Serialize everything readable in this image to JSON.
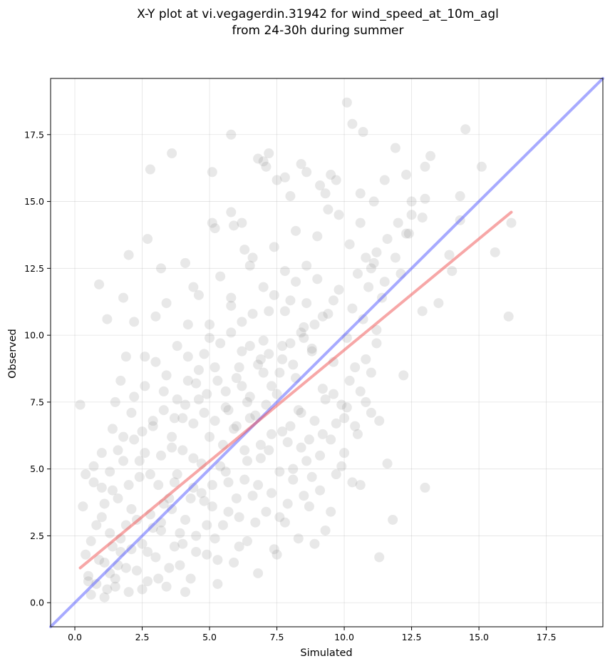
{
  "chart_data": {
    "type": "scatter",
    "title": "X-Y plot at vi.vegagerdin.31942 for wind_speed_at_10m_agl",
    "subtitle": "from 24-30h during summer",
    "xlabel": "Simulated",
    "ylabel": "Observed",
    "xlim": [
      -0.9,
      19.6
    ],
    "ylim": [
      -0.9,
      19.6
    ],
    "x_ticks": [
      "0.0",
      "2.5",
      "5.0",
      "7.5",
      "10.0",
      "12.5",
      "15.0",
      "17.5"
    ],
    "y_ticks": [
      "0.0",
      "2.5",
      "5.0",
      "7.5",
      "10.0",
      "12.5",
      "15.0",
      "17.5"
    ],
    "grid": true,
    "point_color": "#808080",
    "point_alpha": 0.18,
    "identity_line": {
      "x": [
        -0.9,
        19.6
      ],
      "y": [
        -0.9,
        19.6
      ],
      "color": "#4f56ff",
      "alpha": 0.5
    },
    "regression_line": {
      "x": [
        0.2,
        16.2
      ],
      "y": [
        1.3,
        14.6
      ],
      "color": "#f05050",
      "alpha": 0.5
    },
    "points": [
      [
        0.2,
        7.4
      ],
      [
        0.9,
        11.9
      ],
      [
        1.9,
        9.2
      ],
      [
        2.0,
        13.0
      ],
      [
        2.8,
        16.2
      ],
      [
        2.7,
        13.6
      ],
      [
        3.2,
        12.5
      ],
      [
        3.6,
        16.8
      ],
      [
        4.1,
        12.7
      ],
      [
        4.4,
        11.8
      ],
      [
        5.1,
        16.1
      ],
      [
        5.1,
        14.2
      ],
      [
        5.2,
        14.0
      ],
      [
        5.8,
        17.5
      ],
      [
        5.8,
        14.6
      ],
      [
        5.9,
        14.1
      ],
      [
        6.3,
        13.2
      ],
      [
        6.2,
        14.2
      ],
      [
        6.5,
        12.6
      ],
      [
        6.8,
        16.6
      ],
      [
        7.0,
        16.5
      ],
      [
        7.1,
        16.3
      ],
      [
        7.2,
        16.8
      ],
      [
        7.5,
        15.8
      ],
      [
        7.8,
        15.9
      ],
      [
        8.0,
        15.2
      ],
      [
        8.4,
        16.4
      ],
      [
        8.6,
        16.1
      ],
      [
        9.1,
        15.6
      ],
      [
        9.3,
        15.3
      ],
      [
        9.5,
        16.0
      ],
      [
        9.7,
        15.8
      ],
      [
        10.1,
        18.7
      ],
      [
        10.3,
        17.9
      ],
      [
        10.6,
        15.3
      ],
      [
        10.7,
        17.6
      ],
      [
        11.1,
        15.0
      ],
      [
        11.5,
        15.8
      ],
      [
        11.9,
        17.0
      ],
      [
        12.3,
        16.0
      ],
      [
        12.5,
        15.0
      ],
      [
        13.0,
        16.3
      ],
      [
        13.2,
        16.7
      ],
      [
        13.0,
        15.1
      ],
      [
        14.5,
        17.7
      ],
      [
        15.1,
        16.3
      ],
      [
        14.3,
        15.2
      ],
      [
        14.3,
        14.3
      ],
      [
        16.2,
        14.2
      ],
      [
        15.6,
        13.1
      ],
      [
        16.1,
        10.7
      ],
      [
        14.0,
        12.4
      ],
      [
        13.9,
        13.0
      ],
      [
        13.5,
        11.2
      ],
      [
        12.9,
        10.9
      ],
      [
        12.2,
        8.5
      ],
      [
        13.0,
        4.3
      ],
      [
        11.8,
        3.1
      ],
      [
        11.6,
        5.2
      ],
      [
        11.3,
        1.7
      ],
      [
        11.3,
        6.8
      ],
      [
        10.6,
        4.4
      ],
      [
        11.0,
        7.1
      ],
      [
        11.2,
        9.7
      ],
      [
        10.8,
        12.9
      ],
      [
        11.5,
        12.0
      ],
      [
        12.1,
        12.3
      ],
      [
        12.4,
        13.8
      ],
      [
        12.5,
        14.5
      ],
      [
        12.9,
        14.4
      ],
      [
        0.5,
        1.0
      ],
      [
        0.6,
        2.3
      ],
      [
        0.3,
        3.6
      ],
      [
        0.7,
        4.5
      ],
      [
        0.4,
        1.8
      ],
      [
        0.8,
        0.7
      ],
      [
        1.0,
        3.2
      ],
      [
        1.1,
        1.5
      ],
      [
        1.2,
        0.5
      ],
      [
        1.3,
        2.6
      ],
      [
        1.4,
        4.2
      ],
      [
        1.5,
        0.9
      ],
      [
        1.6,
        3.9
      ],
      [
        1.7,
        1.9
      ],
      [
        1.8,
        5.3
      ],
      [
        1.9,
        2.9
      ],
      [
        2.0,
        0.4
      ],
      [
        2.1,
        3.5
      ],
      [
        2.2,
        6.1
      ],
      [
        2.3,
        1.2
      ],
      [
        2.4,
        4.7
      ],
      [
        2.5,
        2.2
      ],
      [
        2.6,
        5.6
      ],
      [
        2.7,
        0.8
      ],
      [
        2.8,
        3.3
      ],
      [
        2.9,
        6.6
      ],
      [
        3.0,
        1.7
      ],
      [
        3.1,
        4.4
      ],
      [
        3.2,
        2.7
      ],
      [
        3.3,
        7.2
      ],
      [
        3.4,
        0.6
      ],
      [
        3.5,
        3.9
      ],
      [
        3.6,
        5.8
      ],
      [
        3.7,
        2.1
      ],
      [
        3.8,
        4.8
      ],
      [
        3.9,
        1.4
      ],
      [
        4.0,
        6.9
      ],
      [
        4.1,
        3.1
      ],
      [
        4.2,
        8.3
      ],
      [
        4.3,
        0.9
      ],
      [
        4.4,
        5.4
      ],
      [
        4.5,
        2.5
      ],
      [
        4.6,
        7.6
      ],
      [
        4.7,
        4.1
      ],
      [
        4.8,
        9.3
      ],
      [
        4.9,
        1.8
      ],
      [
        5.0,
        6.2
      ],
      [
        5.1,
        3.6
      ],
      [
        5.2,
        8.8
      ],
      [
        5.3,
        0.7
      ],
      [
        5.4,
        5.1
      ],
      [
        5.5,
        2.9
      ],
      [
        5.6,
        7.3
      ],
      [
        5.7,
        4.5
      ],
      [
        5.8,
        10.1
      ],
      [
        5.9,
        1.5
      ],
      [
        6.0,
        6.6
      ],
      [
        6.1,
        3.2
      ],
      [
        6.2,
        8.1
      ],
      [
        6.3,
        5.7
      ],
      [
        6.4,
        2.3
      ],
      [
        6.5,
        9.6
      ],
      [
        6.6,
        4.0
      ],
      [
        6.7,
        7.0
      ],
      [
        6.8,
        1.1
      ],
      [
        6.9,
        5.9
      ],
      [
        7.0,
        8.6
      ],
      [
        7.1,
        3.4
      ],
      [
        7.2,
        10.9
      ],
      [
        7.3,
        6.3
      ],
      [
        7.4,
        2.0
      ],
      [
        7.5,
        7.8
      ],
      [
        7.6,
        4.9
      ],
      [
        7.7,
        9.1
      ],
      [
        7.8,
        3.0
      ],
      [
        7.9,
        6.0
      ],
      [
        8.0,
        11.3
      ],
      [
        8.1,
        4.6
      ],
      [
        8.2,
        8.4
      ],
      [
        8.3,
        2.4
      ],
      [
        8.4,
        7.1
      ],
      [
        8.5,
        10.3
      ],
      [
        8.6,
        5.3
      ],
      [
        8.7,
        3.6
      ],
      [
        8.8,
        9.4
      ],
      [
        8.9,
        6.8
      ],
      [
        9.0,
        12.1
      ],
      [
        9.1,
        4.2
      ],
      [
        9.2,
        8.0
      ],
      [
        9.3,
        2.7
      ],
      [
        9.4,
        10.8
      ],
      [
        9.5,
        6.1
      ],
      [
        9.6,
        9.0
      ],
      [
        9.7,
        4.8
      ],
      [
        9.8,
        11.7
      ],
      [
        9.9,
        7.4
      ],
      [
        10.0,
        5.6
      ],
      [
        10.1,
        9.9
      ],
      [
        10.2,
        8.3
      ],
      [
        10.3,
        11.0
      ],
      [
        10.4,
        6.6
      ],
      [
        10.5,
        12.3
      ],
      [
        10.6,
        7.9
      ],
      [
        10.7,
        10.6
      ],
      [
        10.8,
        9.1
      ],
      [
        10.9,
        11.8
      ],
      [
        11.0,
        8.6
      ],
      [
        11.1,
        12.7
      ],
      [
        11.2,
        10.2
      ],
      [
        11.4,
        11.4
      ],
      [
        0.6,
        0.3
      ],
      [
        0.9,
        1.6
      ],
      [
        1.1,
        0.2
      ],
      [
        1.3,
        1.1
      ],
      [
        1.5,
        0.6
      ],
      [
        1.7,
        2.4
      ],
      [
        1.9,
        1.3
      ],
      [
        2.1,
        2.0
      ],
      [
        2.3,
        3.1
      ],
      [
        2.5,
        0.5
      ],
      [
        2.7,
        1.9
      ],
      [
        2.9,
        2.8
      ],
      [
        3.1,
        0.9
      ],
      [
        3.3,
        3.7
      ],
      [
        3.5,
        1.3
      ],
      [
        3.7,
        4.5
      ],
      [
        3.9,
        2.6
      ],
      [
        4.1,
        0.4
      ],
      [
        4.3,
        3.9
      ],
      [
        4.5,
        1.9
      ],
      [
        4.7,
        5.2
      ],
      [
        4.9,
        2.9
      ],
      [
        5.1,
        4.4
      ],
      [
        5.3,
        1.6
      ],
      [
        5.5,
        5.9
      ],
      [
        5.7,
        3.4
      ],
      [
        5.9,
        6.5
      ],
      [
        6.1,
        2.1
      ],
      [
        6.3,
        4.6
      ],
      [
        6.5,
        6.9
      ],
      [
        6.7,
        3.0
      ],
      [
        6.9,
        5.4
      ],
      [
        7.1,
        7.4
      ],
      [
        7.3,
        4.1
      ],
      [
        7.5,
        1.8
      ],
      [
        7.7,
        6.4
      ],
      [
        7.9,
        3.7
      ],
      [
        8.1,
        5.0
      ],
      [
        8.3,
        7.2
      ],
      [
        8.5,
        4.0
      ],
      [
        8.7,
        6.1
      ],
      [
        8.9,
        2.2
      ],
      [
        9.1,
        5.5
      ],
      [
        9.3,
        7.6
      ],
      [
        9.5,
        3.4
      ],
      [
        9.7,
        6.7
      ],
      [
        9.9,
        5.1
      ],
      [
        10.1,
        7.3
      ],
      [
        10.3,
        4.5
      ],
      [
        10.5,
        6.3
      ],
      [
        1.2,
        10.6
      ],
      [
        1.8,
        11.4
      ],
      [
        2.2,
        10.5
      ],
      [
        2.6,
        9.2
      ],
      [
        3.0,
        10.7
      ],
      [
        3.4,
        11.2
      ],
      [
        3.8,
        9.6
      ],
      [
        4.2,
        10.4
      ],
      [
        4.6,
        11.5
      ],
      [
        5.0,
        9.9
      ],
      [
        5.4,
        12.2
      ],
      [
        5.8,
        11.1
      ],
      [
        6.2,
        10.5
      ],
      [
        6.6,
        12.9
      ],
      [
        7.0,
        11.8
      ],
      [
        7.4,
        13.3
      ],
      [
        7.8,
        12.4
      ],
      [
        8.2,
        13.9
      ],
      [
        8.6,
        12.6
      ],
      [
        9.0,
        13.7
      ],
      [
        9.4,
        14.7
      ],
      [
        9.8,
        14.5
      ],
      [
        10.2,
        13.4
      ],
      [
        10.6,
        14.2
      ],
      [
        11.0,
        12.5
      ],
      [
        11.6,
        13.6
      ],
      [
        12.0,
        14.2
      ],
      [
        12.3,
        13.8
      ],
      [
        11.9,
        12.9
      ],
      [
        11.2,
        13.1
      ],
      [
        1.0,
        5.6
      ],
      [
        1.4,
        6.5
      ],
      [
        1.8,
        6.2
      ],
      [
        2.2,
        7.7
      ],
      [
        2.6,
        8.1
      ],
      [
        3.0,
        9.0
      ],
      [
        3.4,
        8.5
      ],
      [
        3.8,
        7.6
      ],
      [
        4.2,
        9.2
      ],
      [
        4.6,
        8.7
      ],
      [
        5.0,
        10.4
      ],
      [
        5.4,
        9.7
      ],
      [
        5.8,
        11.4
      ],
      [
        6.2,
        9.4
      ],
      [
        6.6,
        10.8
      ],
      [
        7.0,
        9.8
      ],
      [
        7.4,
        11.5
      ],
      [
        7.8,
        10.9
      ],
      [
        8.2,
        12.0
      ],
      [
        8.6,
        11.2
      ],
      [
        0.4,
        4.8
      ],
      [
        0.7,
        5.1
      ],
      [
        1.0,
        4.3
      ],
      [
        1.3,
        4.9
      ],
      [
        1.6,
        5.7
      ],
      [
        0.8,
        2.9
      ],
      [
        1.1,
        3.7
      ],
      [
        1.4,
        2.1
      ],
      [
        1.6,
        1.4
      ],
      [
        0.5,
        0.8
      ],
      [
        2.0,
        4.4
      ],
      [
        2.4,
        5.3
      ],
      [
        2.8,
        4.8
      ],
      [
        3.2,
        5.5
      ],
      [
        3.6,
        6.2
      ],
      [
        4.0,
        5.7
      ],
      [
        4.4,
        6.7
      ],
      [
        4.8,
        7.1
      ],
      [
        5.2,
        6.8
      ],
      [
        5.6,
        7.9
      ],
      [
        6.0,
        8.4
      ],
      [
        6.4,
        7.5
      ],
      [
        6.8,
        8.9
      ],
      [
        7.2,
        9.3
      ],
      [
        7.6,
        8.6
      ],
      [
        8.0,
        9.7
      ],
      [
        8.4,
        10.1
      ],
      [
        8.8,
        9.5
      ],
      [
        9.2,
        10.7
      ],
      [
        9.6,
        11.3
      ],
      [
        3.2,
        3.0
      ],
      [
        3.6,
        3.5
      ],
      [
        4.0,
        2.2
      ],
      [
        4.4,
        4.3
      ],
      [
        4.8,
        3.8
      ],
      [
        5.2,
        2.4
      ],
      [
        5.6,
        4.9
      ],
      [
        6.0,
        3.9
      ],
      [
        6.4,
        5.3
      ],
      [
        6.8,
        4.4
      ],
      [
        7.2,
        5.7
      ],
      [
        7.6,
        3.2
      ],
      [
        8.0,
        6.6
      ],
      [
        8.4,
        5.8
      ],
      [
        8.8,
        4.7
      ],
      [
        9.2,
        6.3
      ],
      [
        9.6,
        7.8
      ],
      [
        10.0,
        6.9
      ],
      [
        10.4,
        8.8
      ],
      [
        10.8,
        7.5
      ],
      [
        1.5,
        7.5
      ],
      [
        1.7,
        8.3
      ],
      [
        2.1,
        7.1
      ],
      [
        2.5,
        6.4
      ],
      [
        2.9,
        6.8
      ],
      [
        3.3,
        7.9
      ],
      [
        3.7,
        6.9
      ],
      [
        4.1,
        7.4
      ],
      [
        4.5,
        8.2
      ],
      [
        4.9,
        7.8
      ],
      [
        5.3,
        8.3
      ],
      [
        5.7,
        7.2
      ],
      [
        6.1,
        8.8
      ],
      [
        6.5,
        7.7
      ],
      [
        6.9,
        9.1
      ],
      [
        7.3,
        8.1
      ],
      [
        7.7,
        9.6
      ],
      [
        8.1,
        8.9
      ],
      [
        8.5,
        9.9
      ],
      [
        8.9,
        10.4
      ]
    ]
  }
}
